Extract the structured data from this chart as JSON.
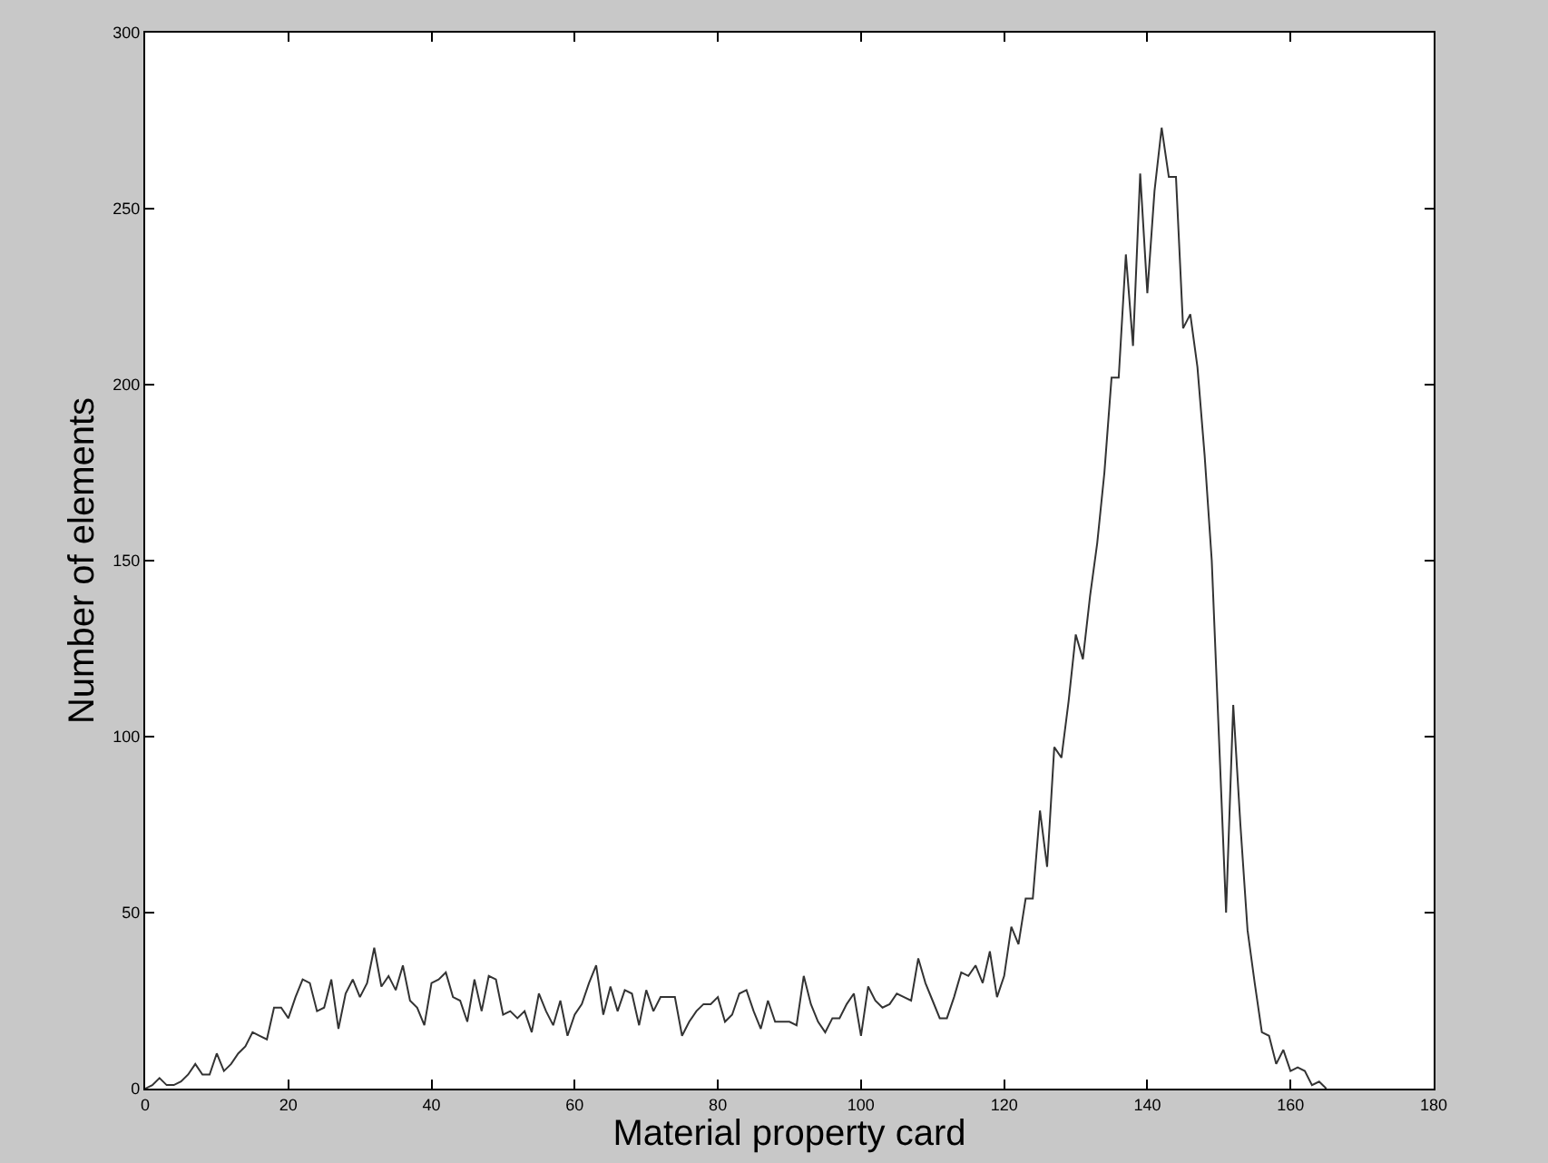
{
  "chart_data": {
    "type": "line",
    "xlabel": "Material property card",
    "ylabel": "Number of elements",
    "x": [
      0,
      1,
      2,
      3,
      4,
      5,
      6,
      7,
      8,
      9,
      10,
      11,
      12,
      13,
      14,
      15,
      16,
      17,
      18,
      19,
      20,
      21,
      22,
      23,
      24,
      25,
      26,
      27,
      28,
      29,
      30,
      31,
      32,
      33,
      34,
      35,
      36,
      37,
      38,
      39,
      40,
      41,
      42,
      43,
      44,
      45,
      46,
      47,
      48,
      49,
      50,
      51,
      52,
      53,
      54,
      55,
      56,
      57,
      58,
      59,
      60,
      61,
      62,
      63,
      64,
      65,
      66,
      67,
      68,
      69,
      70,
      71,
      72,
      73,
      74,
      75,
      76,
      77,
      78,
      79,
      80,
      81,
      82,
      83,
      84,
      85,
      86,
      87,
      88,
      89,
      90,
      91,
      92,
      93,
      94,
      95,
      96,
      97,
      98,
      99,
      100,
      101,
      102,
      103,
      104,
      105,
      106,
      107,
      108,
      109,
      110,
      111,
      112,
      113,
      114,
      115,
      116,
      117,
      118,
      119,
      120,
      121,
      122,
      123,
      124,
      125,
      126,
      127,
      128,
      129,
      130,
      131,
      132,
      133,
      134,
      135,
      136,
      137,
      138,
      139,
      140,
      141,
      142,
      143,
      144,
      145,
      146,
      147,
      148,
      149,
      150,
      151,
      152,
      153,
      154,
      155,
      156,
      157,
      158,
      159,
      160,
      161,
      162,
      163,
      164,
      165
    ],
    "series": [
      {
        "color": "#333333",
        "values": [
          0,
          1,
          3,
          1,
          1,
          2,
          4,
          7,
          4,
          4,
          10,
          5,
          7,
          10,
          12,
          16,
          15,
          14,
          23,
          23,
          20,
          26,
          31,
          30,
          22,
          23,
          31,
          17,
          27,
          31,
          26,
          30,
          40,
          29,
          32,
          28,
          35,
          25,
          23,
          18,
          30,
          31,
          33,
          26,
          25,
          19,
          31,
          22,
          32,
          31,
          21,
          22,
          20,
          22,
          16,
          27,
          22,
          18,
          25,
          15,
          21,
          24,
          30,
          35,
          21,
          29,
          22,
          28,
          27,
          18,
          28,
          22,
          26,
          26,
          26,
          15,
          19,
          22,
          24,
          24,
          26,
          19,
          21,
          27,
          28,
          22,
          17,
          25,
          19,
          19,
          19,
          18,
          32,
          24,
          19,
          16,
          20,
          20,
          24,
          27,
          15,
          29,
          25,
          23,
          24,
          27,
          26,
          25,
          37,
          30,
          25,
          20,
          20,
          26,
          33,
          32,
          35,
          30,
          39,
          26,
          32,
          46,
          41,
          54,
          54,
          79,
          63,
          97,
          94,
          110,
          129,
          122,
          140,
          155,
          175,
          202,
          202,
          237,
          211,
          260,
          226,
          255,
          273,
          259,
          259,
          216,
          220,
          205,
          180,
          150,
          100,
          50,
          109,
          75,
          45,
          30,
          16,
          15,
          7,
          11,
          5,
          6,
          5,
          1,
          2,
          0
        ]
      }
    ],
    "xlim": [
      0,
      180
    ],
    "xticks": [
      0,
      20,
      40,
      60,
      80,
      100,
      120,
      140,
      160,
      180
    ],
    "ylim": [
      0,
      300
    ],
    "yticks": [
      0,
      50,
      100,
      150,
      200,
      250,
      300
    ],
    "marker": "none",
    "line_style": "solid"
  }
}
